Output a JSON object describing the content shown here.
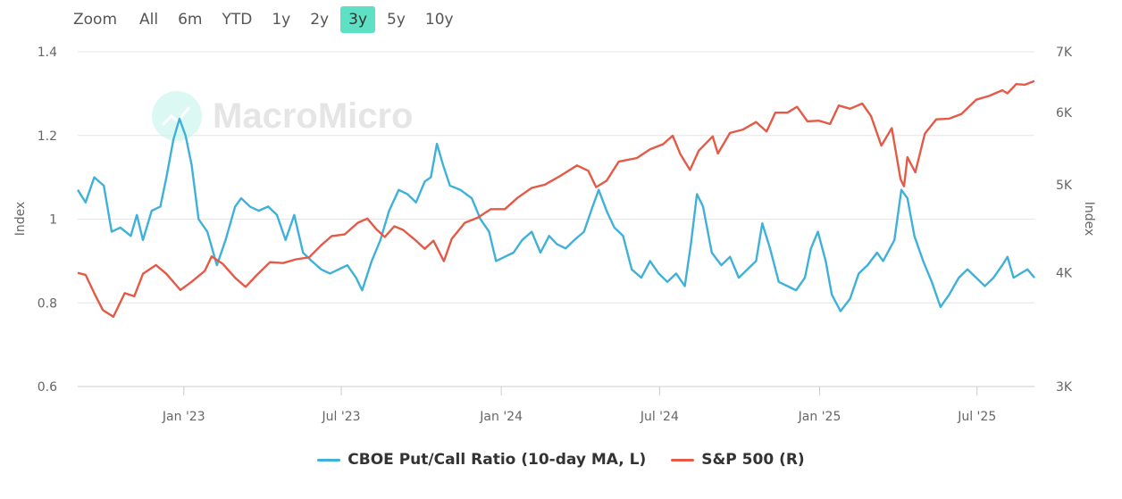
{
  "toolbar": {
    "zoom_label": "Zoom",
    "buttons": [
      "All",
      "6m",
      "YTD",
      "1y",
      "2y",
      "3y",
      "5y",
      "10y"
    ],
    "active": "3y"
  },
  "watermark": {
    "text": "MacroMicro"
  },
  "chart_data": {
    "type": "line",
    "title": "",
    "x_range": [
      "2022-09-01",
      "2025-09-05"
    ],
    "x_ticks": [
      {
        "label": "Jan '23",
        "date": "2023-01-01"
      },
      {
        "label": "Jul '23",
        "date": "2023-07-01"
      },
      {
        "label": "Jan '24",
        "date": "2024-01-01"
      },
      {
        "label": "Jul '24",
        "date": "2024-07-01"
      },
      {
        "label": "Jan '25",
        "date": "2025-01-01"
      },
      {
        "label": "Jul '25",
        "date": "2025-07-01"
      }
    ],
    "y_left": {
      "label": "Index",
      "min": 0.6,
      "max": 1.4,
      "ticks": [
        "1.4",
        "1.2",
        "1",
        "0.8",
        "0.6"
      ],
      "tick_values": [
        1.4,
        1.2,
        1.0,
        0.8,
        0.6
      ]
    },
    "y_right": {
      "label": "Index",
      "scale": "log",
      "min": 3000,
      "max": 7000,
      "ticks": [
        "7K",
        "6K",
        "5K",
        "4K",
        "3K"
      ],
      "tick_values": [
        7000,
        6000,
        5000,
        4000,
        3000
      ]
    },
    "series": [
      {
        "name": "CBOE Put/Call Ratio (10-day MA, L)",
        "axis": "left",
        "color": "#3fb1d9",
        "points": [
          [
            "2022-09-01",
            1.07
          ],
          [
            "2022-09-10",
            1.04
          ],
          [
            "2022-09-20",
            1.1
          ],
          [
            "2022-10-01",
            1.08
          ],
          [
            "2022-10-10",
            0.97
          ],
          [
            "2022-10-20",
            0.98
          ],
          [
            "2022-11-01",
            0.96
          ],
          [
            "2022-11-08",
            1.01
          ],
          [
            "2022-11-15",
            0.95
          ],
          [
            "2022-11-25",
            1.02
          ],
          [
            "2022-12-05",
            1.03
          ],
          [
            "2022-12-12",
            1.1
          ],
          [
            "2022-12-20",
            1.19
          ],
          [
            "2022-12-27",
            1.24
          ],
          [
            "2023-01-03",
            1.2
          ],
          [
            "2023-01-10",
            1.13
          ],
          [
            "2023-01-18",
            1.0
          ],
          [
            "2023-01-28",
            0.97
          ],
          [
            "2023-02-08",
            0.89
          ],
          [
            "2023-02-18",
            0.95
          ],
          [
            "2023-03-01",
            1.03
          ],
          [
            "2023-03-08",
            1.05
          ],
          [
            "2023-03-18",
            1.03
          ],
          [
            "2023-03-28",
            1.02
          ],
          [
            "2023-04-08",
            1.03
          ],
          [
            "2023-04-18",
            1.01
          ],
          [
            "2023-04-28",
            0.95
          ],
          [
            "2023-05-08",
            1.01
          ],
          [
            "2023-05-18",
            0.92
          ],
          [
            "2023-05-28",
            0.9
          ],
          [
            "2023-06-08",
            0.88
          ],
          [
            "2023-06-18",
            0.87
          ],
          [
            "2023-06-28",
            0.88
          ],
          [
            "2023-07-08",
            0.89
          ],
          [
            "2023-07-18",
            0.86
          ],
          [
            "2023-07-25",
            0.83
          ],
          [
            "2023-08-05",
            0.9
          ],
          [
            "2023-08-15",
            0.95
          ],
          [
            "2023-08-25",
            1.02
          ],
          [
            "2023-09-05",
            1.07
          ],
          [
            "2023-09-15",
            1.06
          ],
          [
            "2023-09-25",
            1.04
          ],
          [
            "2023-10-05",
            1.09
          ],
          [
            "2023-10-12",
            1.1
          ],
          [
            "2023-10-19",
            1.18
          ],
          [
            "2023-10-26",
            1.13
          ],
          [
            "2023-11-03",
            1.08
          ],
          [
            "2023-11-15",
            1.07
          ],
          [
            "2023-11-28",
            1.05
          ],
          [
            "2023-12-08",
            1.0
          ],
          [
            "2023-12-18",
            0.97
          ],
          [
            "2023-12-26",
            0.9
          ],
          [
            "2024-01-05",
            0.91
          ],
          [
            "2024-01-15",
            0.92
          ],
          [
            "2024-01-25",
            0.95
          ],
          [
            "2024-02-05",
            0.97
          ],
          [
            "2024-02-15",
            0.92
          ],
          [
            "2024-02-25",
            0.96
          ],
          [
            "2024-03-05",
            0.94
          ],
          [
            "2024-03-15",
            0.93
          ],
          [
            "2024-03-25",
            0.95
          ],
          [
            "2024-04-05",
            0.97
          ],
          [
            "2024-04-15",
            1.03
          ],
          [
            "2024-04-22",
            1.07
          ],
          [
            "2024-05-01",
            1.02
          ],
          [
            "2024-05-10",
            0.98
          ],
          [
            "2024-05-20",
            0.96
          ],
          [
            "2024-05-30",
            0.88
          ],
          [
            "2024-06-10",
            0.86
          ],
          [
            "2024-06-20",
            0.9
          ],
          [
            "2024-06-30",
            0.87
          ],
          [
            "2024-07-10",
            0.85
          ],
          [
            "2024-07-20",
            0.87
          ],
          [
            "2024-07-30",
            0.84
          ],
          [
            "2024-08-06",
            0.94
          ],
          [
            "2024-08-13",
            1.06
          ],
          [
            "2024-08-20",
            1.03
          ],
          [
            "2024-08-30",
            0.92
          ],
          [
            "2024-09-10",
            0.89
          ],
          [
            "2024-09-20",
            0.91
          ],
          [
            "2024-09-30",
            0.86
          ],
          [
            "2024-10-10",
            0.88
          ],
          [
            "2024-10-20",
            0.9
          ],
          [
            "2024-10-27",
            0.99
          ],
          [
            "2024-11-05",
            0.93
          ],
          [
            "2024-11-15",
            0.85
          ],
          [
            "2024-11-25",
            0.84
          ],
          [
            "2024-12-05",
            0.83
          ],
          [
            "2024-12-15",
            0.86
          ],
          [
            "2024-12-22",
            0.93
          ],
          [
            "2024-12-30",
            0.97
          ],
          [
            "2025-01-08",
            0.9
          ],
          [
            "2025-01-15",
            0.82
          ],
          [
            "2025-01-25",
            0.78
          ],
          [
            "2025-02-05",
            0.81
          ],
          [
            "2025-02-15",
            0.87
          ],
          [
            "2025-02-25",
            0.89
          ],
          [
            "2025-03-08",
            0.92
          ],
          [
            "2025-03-15",
            0.9
          ],
          [
            "2025-03-28",
            0.95
          ],
          [
            "2025-04-05",
            1.07
          ],
          [
            "2025-04-12",
            1.05
          ],
          [
            "2025-04-20",
            0.96
          ],
          [
            "2025-04-30",
            0.9
          ],
          [
            "2025-05-10",
            0.85
          ],
          [
            "2025-05-20",
            0.79
          ],
          [
            "2025-05-30",
            0.82
          ],
          [
            "2025-06-10",
            0.86
          ],
          [
            "2025-06-20",
            0.88
          ],
          [
            "2025-06-30",
            0.86
          ],
          [
            "2025-07-10",
            0.84
          ],
          [
            "2025-07-20",
            0.86
          ],
          [
            "2025-07-30",
            0.89
          ],
          [
            "2025-08-05",
            0.91
          ],
          [
            "2025-08-12",
            0.86
          ],
          [
            "2025-08-20",
            0.87
          ],
          [
            "2025-08-28",
            0.88
          ],
          [
            "2025-09-05",
            0.86
          ]
        ]
      },
      {
        "name": "S&P 500 (R)",
        "axis": "right",
        "color": "#e45a47",
        "points": [
          [
            "2022-09-01",
            4000
          ],
          [
            "2022-09-10",
            3980
          ],
          [
            "2022-09-20",
            3800
          ],
          [
            "2022-09-30",
            3640
          ],
          [
            "2022-10-12",
            3580
          ],
          [
            "2022-10-25",
            3800
          ],
          [
            "2022-11-05",
            3770
          ],
          [
            "2022-11-15",
            3990
          ],
          [
            "2022-11-30",
            4080
          ],
          [
            "2022-12-12",
            3990
          ],
          [
            "2022-12-28",
            3830
          ],
          [
            "2023-01-10",
            3910
          ],
          [
            "2023-01-25",
            4020
          ],
          [
            "2023-02-02",
            4170
          ],
          [
            "2023-02-15",
            4090
          ],
          [
            "2023-03-01",
            3950
          ],
          [
            "2023-03-13",
            3860
          ],
          [
            "2023-03-25",
            3970
          ],
          [
            "2023-04-10",
            4110
          ],
          [
            "2023-04-25",
            4100
          ],
          [
            "2023-05-10",
            4140
          ],
          [
            "2023-05-25",
            4160
          ],
          [
            "2023-06-08",
            4290
          ],
          [
            "2023-06-20",
            4390
          ],
          [
            "2023-07-05",
            4410
          ],
          [
            "2023-07-20",
            4540
          ],
          [
            "2023-07-31",
            4590
          ],
          [
            "2023-08-10",
            4470
          ],
          [
            "2023-08-20",
            4380
          ],
          [
            "2023-08-31",
            4500
          ],
          [
            "2023-09-10",
            4460
          ],
          [
            "2023-09-25",
            4340
          ],
          [
            "2023-10-05",
            4250
          ],
          [
            "2023-10-15",
            4340
          ],
          [
            "2023-10-27",
            4120
          ],
          [
            "2023-11-05",
            4360
          ],
          [
            "2023-11-20",
            4540
          ],
          [
            "2023-12-05",
            4600
          ],
          [
            "2023-12-20",
            4700
          ],
          [
            "2024-01-05",
            4700
          ],
          [
            "2024-01-20",
            4840
          ],
          [
            "2024-02-05",
            4960
          ],
          [
            "2024-02-20",
            5000
          ],
          [
            "2024-03-10",
            5120
          ],
          [
            "2024-03-28",
            5250
          ],
          [
            "2024-04-10",
            5180
          ],
          [
            "2024-04-19",
            4970
          ],
          [
            "2024-05-01",
            5050
          ],
          [
            "2024-05-15",
            5300
          ],
          [
            "2024-06-05",
            5350
          ],
          [
            "2024-06-20",
            5470
          ],
          [
            "2024-07-05",
            5540
          ],
          [
            "2024-07-16",
            5660
          ],
          [
            "2024-07-25",
            5400
          ],
          [
            "2024-08-05",
            5190
          ],
          [
            "2024-08-15",
            5450
          ],
          [
            "2024-08-31",
            5650
          ],
          [
            "2024-09-06",
            5410
          ],
          [
            "2024-09-20",
            5700
          ],
          [
            "2024-10-05",
            5750
          ],
          [
            "2024-10-20",
            5860
          ],
          [
            "2024-11-01",
            5720
          ],
          [
            "2024-11-11",
            6000
          ],
          [
            "2024-11-25",
            6000
          ],
          [
            "2024-12-06",
            6090
          ],
          [
            "2024-12-18",
            5870
          ],
          [
            "2024-12-31",
            5880
          ],
          [
            "2025-01-13",
            5830
          ],
          [
            "2025-01-23",
            6110
          ],
          [
            "2025-02-05",
            6060
          ],
          [
            "2025-02-19",
            6140
          ],
          [
            "2025-03-01",
            5950
          ],
          [
            "2025-03-13",
            5520
          ],
          [
            "2025-03-25",
            5770
          ],
          [
            "2025-04-04",
            5070
          ],
          [
            "2025-04-08",
            4980
          ],
          [
            "2025-04-12",
            5360
          ],
          [
            "2025-04-21",
            5160
          ],
          [
            "2025-05-02",
            5690
          ],
          [
            "2025-05-15",
            5900
          ],
          [
            "2025-05-30",
            5910
          ],
          [
            "2025-06-13",
            5980
          ],
          [
            "2025-06-30",
            6200
          ],
          [
            "2025-07-15",
            6260
          ],
          [
            "2025-07-30",
            6350
          ],
          [
            "2025-08-05",
            6300
          ],
          [
            "2025-08-15",
            6450
          ],
          [
            "2025-08-25",
            6440
          ],
          [
            "2025-09-05",
            6500
          ]
        ]
      }
    ]
  }
}
